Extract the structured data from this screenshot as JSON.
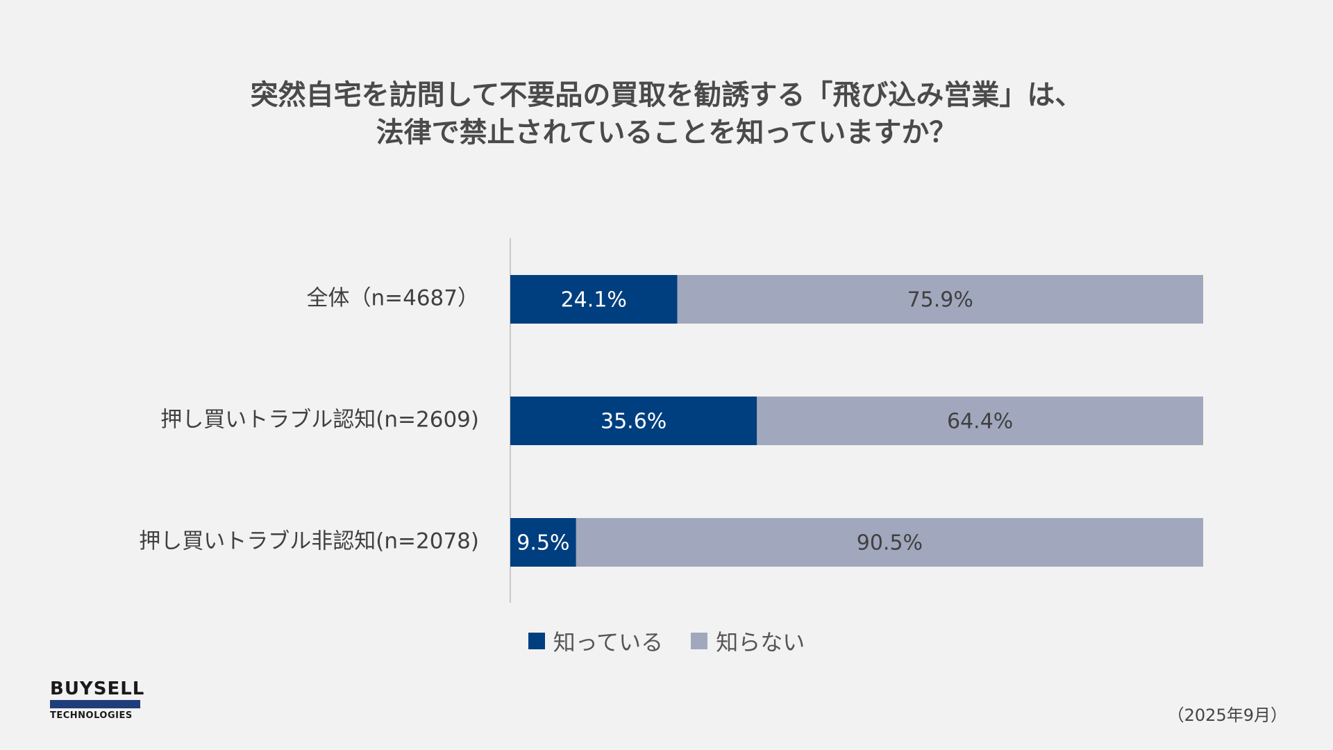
{
  "title": {
    "line1": "突然自宅を訪問して不要品の買取を勧誘する「飛び込み営業」は、",
    "line2": "法律で禁止されていることを知っていますか？"
  },
  "chart_data": {
    "type": "bar",
    "orientation": "horizontal",
    "stacked": true,
    "percent": true,
    "categories": [
      "全体（n=4687）",
      "押し買いトラブル認知(n=2609)",
      "押し買いトラブル非認知(n=2078)"
    ],
    "series": [
      {
        "name": "知っている",
        "values": [
          24.1,
          35.6,
          9.5
        ],
        "labels": [
          "24.1%",
          "35.6%",
          "9.5%"
        ],
        "color": "#003f7f"
      },
      {
        "name": "知らない",
        "values": [
          75.9,
          64.4,
          90.5
        ],
        "labels": [
          "75.9%",
          "64.4%",
          "90.5%"
        ],
        "color": "#a1a8bd"
      }
    ],
    "xlim": [
      0,
      100
    ],
    "legend_position": "bottom"
  },
  "legend": {
    "known": "知っている",
    "unknown": "知らない"
  },
  "colors": {
    "known": "#003f7f",
    "unknown": "#a1a8bd",
    "background": "#f2f2f2"
  },
  "logo": {
    "top": "BUYSELL",
    "bottom": "TECHNOLOGIES"
  },
  "date": "（2025年9月）"
}
